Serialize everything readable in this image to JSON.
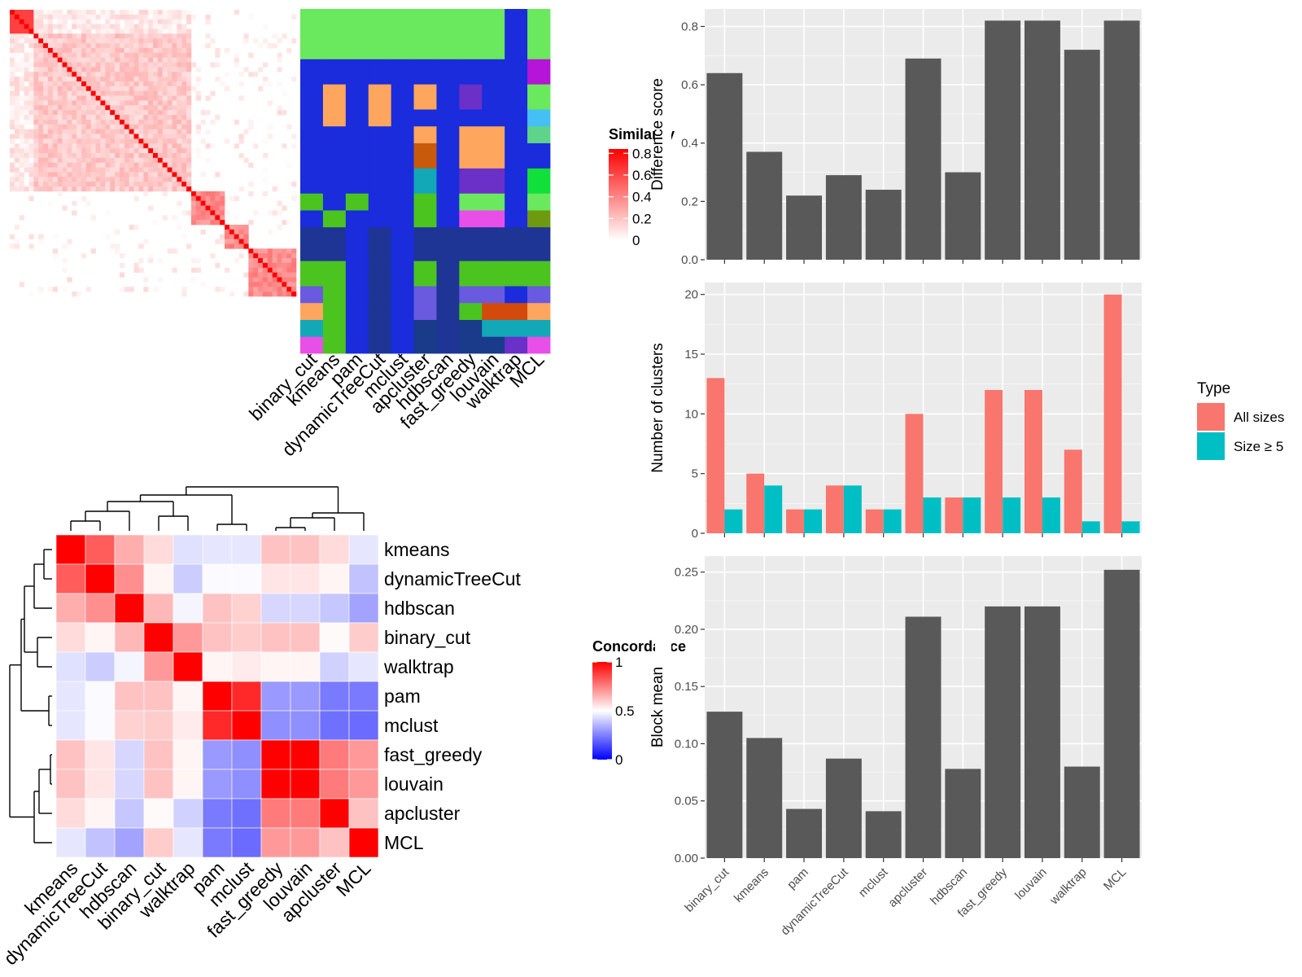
{
  "methods_axis": [
    "binary_cut",
    "kmeans",
    "pam",
    "dynamicTreeCut",
    "mclust",
    "apcluster",
    "hdbscan",
    "fast_greedy",
    "louvain",
    "walktrap",
    "MCL"
  ],
  "similarity_legend": {
    "title": "Similarity",
    "ticks": [
      "0.8",
      "0.6",
      "0.4",
      "0.2",
      "0"
    ],
    "tick_values": [
      0.8,
      0.6,
      0.4,
      0.2,
      0
    ]
  },
  "concordance_legend": {
    "title": "Concordance",
    "ticks": [
      "1",
      "0.5",
      "0"
    ],
    "tick_values": [
      1,
      0.5,
      0
    ]
  },
  "type_legend": {
    "title": "Type",
    "items": [
      {
        "label": "All sizes",
        "color": "#F8766D"
      },
      {
        "label": "Size ≥ 5",
        "color": "#00BFC4"
      }
    ]
  },
  "palette": {
    "bar": "#595959",
    "panel_bg": "#EBEBEB",
    "concordance_high": "#FF0000",
    "concordance_mid": "#FFFFFF",
    "concordance_low": "#0000FF",
    "similarity_high": "#FF0000"
  },
  "concordance_order": [
    "kmeans",
    "dynamicTreeCut",
    "hdbscan",
    "binary_cut",
    "walktrap",
    "pam",
    "mclust",
    "fast_greedy",
    "louvain",
    "apcluster",
    "MCL"
  ],
  "concordance_matrix": [
    [
      1.0,
      0.82,
      0.66,
      0.57,
      0.44,
      0.45,
      0.45,
      0.62,
      0.62,
      0.57,
      0.45
    ],
    [
      0.82,
      1.0,
      0.72,
      0.52,
      0.4,
      0.49,
      0.49,
      0.55,
      0.55,
      0.52,
      0.38
    ],
    [
      0.66,
      0.72,
      1.0,
      0.64,
      0.48,
      0.62,
      0.59,
      0.42,
      0.42,
      0.39,
      0.32
    ],
    [
      0.57,
      0.52,
      0.64,
      1.0,
      0.7,
      0.62,
      0.6,
      0.62,
      0.62,
      0.51,
      0.6
    ],
    [
      0.44,
      0.4,
      0.48,
      0.7,
      1.0,
      0.52,
      0.54,
      0.52,
      0.52,
      0.41,
      0.45
    ],
    [
      0.45,
      0.49,
      0.62,
      0.62,
      0.52,
      1.0,
      0.92,
      0.3,
      0.3,
      0.24,
      0.24
    ],
    [
      0.45,
      0.49,
      0.59,
      0.6,
      0.54,
      0.92,
      1.0,
      0.28,
      0.28,
      0.22,
      0.21
    ],
    [
      0.62,
      0.55,
      0.42,
      0.62,
      0.52,
      0.3,
      0.28,
      1.0,
      1.0,
      0.76,
      0.7
    ],
    [
      0.62,
      0.55,
      0.42,
      0.62,
      0.52,
      0.3,
      0.28,
      1.0,
      1.0,
      0.76,
      0.7
    ],
    [
      0.57,
      0.52,
      0.39,
      0.51,
      0.41,
      0.24,
      0.22,
      0.76,
      0.76,
      1.0,
      0.62
    ],
    [
      0.45,
      0.38,
      0.32,
      0.6,
      0.45,
      0.24,
      0.21,
      0.7,
      0.7,
      0.62,
      1.0
    ]
  ],
  "cluster_color_map": {
    "methods": [
      "binary_cut",
      "kmeans",
      "pam",
      "dynamicTreeCut",
      "mclust",
      "apcluster",
      "hdbscan",
      "fast_greedy",
      "louvain",
      "walktrap",
      "MCL"
    ],
    "rows": [
      {
        "fraction": 0.146,
        "colors": [
          "#6AE85E",
          "#6AE85E",
          "#6AE85E",
          "#6AE85E",
          "#6AE85E",
          "#6AE85E",
          "#6AE85E",
          "#6AE85E",
          "#6AE85E",
          "#1A2CDB",
          "#6AE85E"
        ]
      },
      {
        "fraction": 0.073,
        "colors": [
          "#1A2CDB",
          "#1A2CDB",
          "#1A2CDB",
          "#1A2CDB",
          "#1A2CDB",
          "#1A2CDB",
          "#1A2CDB",
          "#1A2CDB",
          "#1A2CDB",
          "#1A2CDB",
          "#B515D6"
        ]
      },
      {
        "fraction": 0.073,
        "colors": [
          "#1A2CDB",
          "#FFA65E",
          "#1A2CDB",
          "#FFA65E",
          "#1A2CDB",
          "#FFA65E",
          "#1A2CDB",
          "#6A30C8",
          "#1A2CDB",
          "#1A2CDB",
          "#6AE85E"
        ]
      },
      {
        "fraction": 0.049,
        "colors": [
          "#1A2CDB",
          "#FFA65E",
          "#1A2CDB",
          "#FFA65E",
          "#1A2CDB",
          "#1A2CDB",
          "#1A2CDB",
          "#1A2CDB",
          "#1A2CDB",
          "#1A2CDB",
          "#45C0F5"
        ]
      },
      {
        "fraction": 0.049,
        "colors": [
          "#1A2CDB",
          "#1A2CDB",
          "#1A2CDB",
          "#1A2CDB",
          "#1A2CDB",
          "#FFA65E",
          "#1A2CDB",
          "#FFA65E",
          "#FFA65E",
          "#1A2CDB",
          "#5ED48A"
        ]
      },
      {
        "fraction": 0.073,
        "colors": [
          "#1A2CDB",
          "#1A2CDB",
          "#1A2CDB",
          "#1A2CDB",
          "#1A2CDB",
          "#C85A0C",
          "#1A2CDB",
          "#FFA65E",
          "#FFA65E",
          "#1A2CDB",
          "#1A2CDB"
        ]
      },
      {
        "fraction": 0.073,
        "colors": [
          "#1A2CDB",
          "#1A2CDB",
          "#1A2CDB",
          "#1A2CDB",
          "#1A2CDB",
          "#12A8B8",
          "#1A2CDB",
          "#6A30C8",
          "#6A30C8",
          "#1A2CDB",
          "#12E03A"
        ]
      },
      {
        "fraction": 0.049,
        "colors": [
          "#4BC420",
          "#1A2CDB",
          "#4BC420",
          "#1A2CDB",
          "#1A2CDB",
          "#4BC420",
          "#1A2CDB",
          "#6AE85E",
          "#6AE85E",
          "#1A2CDB",
          "#6AE85E"
        ]
      },
      {
        "fraction": 0.049,
        "colors": [
          "#1A2CDB",
          "#4BC420",
          "#1A2CDB",
          "#1A2CDB",
          "#1A2CDB",
          "#4BC420",
          "#1A2CDB",
          "#E84FE8",
          "#E84FE8",
          "#1A2CDB",
          "#6E9A10"
        ]
      },
      {
        "fraction": 0.098,
        "colors": [
          "#1F3596",
          "#1F3596",
          "#1A2CDB",
          "#1F3596",
          "#1A2CDB",
          "#1F3596",
          "#1F3596",
          "#1F3596",
          "#1F3596",
          "#1F3596",
          "#1F3596"
        ]
      },
      {
        "fraction": 0.073,
        "colors": [
          "#4BC420",
          "#4BC420",
          "#1A2CDB",
          "#1F3596",
          "#1A2CDB",
          "#4BC420",
          "#1F3596",
          "#4BC420",
          "#4BC420",
          "#4BC420",
          "#4BC420"
        ]
      },
      {
        "fraction": 0.049,
        "colors": [
          "#6A5AE0",
          "#4BC420",
          "#1A2CDB",
          "#1F3596",
          "#1A2CDB",
          "#6A5AE0",
          "#1F3596",
          "#6A5AE0",
          "#6A5AE0",
          "#1A2CDB",
          "#6A5AE0"
        ]
      },
      {
        "fraction": 0.049,
        "colors": [
          "#FFA65E",
          "#4BC420",
          "#1A2CDB",
          "#1F3596",
          "#1A2CDB",
          "#6A5AE0",
          "#1F3596",
          "#4BC420",
          "#D44A0C",
          "#D44A0C",
          "#FFA65E"
        ]
      },
      {
        "fraction": 0.049,
        "colors": [
          "#12A8B8",
          "#4BC420",
          "#1A2CDB",
          "#1F3596",
          "#1A2CDB",
          "#1A3A8A",
          "#1F3596",
          "#1A3A8A",
          "#12A8B8",
          "#12A8B8",
          "#12A8B8"
        ]
      },
      {
        "fraction": 0.048,
        "colors": [
          "#E84FE8",
          "#4BC420",
          "#1A2CDB",
          "#1F3596",
          "#1A2CDB",
          "#1A3A8A",
          "#1F3596",
          "#1A3A8A",
          "#1A3A8A",
          "#6A30C8",
          "#E84FE8"
        ]
      }
    ]
  },
  "chart_data": [
    {
      "type": "bar",
      "categories": [
        "binary_cut",
        "kmeans",
        "pam",
        "dynamicTreeCut",
        "mclust",
        "apcluster",
        "hdbscan",
        "fast_greedy",
        "louvain",
        "walktrap",
        "MCL"
      ],
      "values": [
        0.64,
        0.37,
        0.22,
        0.29,
        0.24,
        0.69,
        0.3,
        0.82,
        0.82,
        0.72,
        0.82
      ],
      "title": "",
      "xlabel": "",
      "ylabel": "Difference score",
      "ylim": [
        0,
        0.86
      ],
      "yticks": [
        "0.0",
        "0.2",
        "0.4",
        "0.6",
        "0.8"
      ],
      "ytick_values": [
        0,
        0.2,
        0.4,
        0.6,
        0.8
      ],
      "grid": true
    },
    {
      "type": "bar",
      "categories": [
        "binary_cut",
        "kmeans",
        "pam",
        "dynamicTreeCut",
        "mclust",
        "apcluster",
        "hdbscan",
        "fast_greedy",
        "louvain",
        "walktrap",
        "MCL"
      ],
      "series": [
        {
          "name": "All sizes",
          "values": [
            13,
            5,
            2,
            4,
            2,
            10,
            3,
            12,
            12,
            7,
            20
          ]
        },
        {
          "name": "Size ≥ 5",
          "values": [
            2,
            4,
            2,
            4,
            2,
            3,
            3,
            3,
            3,
            1,
            1
          ]
        }
      ],
      "title": "",
      "xlabel": "",
      "ylabel": "Number of clusters",
      "ylim": [
        0,
        21
      ],
      "yticks": [
        "0",
        "5",
        "10",
        "15",
        "20"
      ],
      "ytick_values": [
        0,
        5,
        10,
        15,
        20
      ],
      "legend": "right",
      "grid": true
    },
    {
      "type": "bar",
      "categories": [
        "binary_cut",
        "kmeans",
        "pam",
        "dynamicTreeCut",
        "mclust",
        "apcluster",
        "hdbscan",
        "fast_greedy",
        "louvain",
        "walktrap",
        "MCL"
      ],
      "values": [
        0.128,
        0.105,
        0.043,
        0.087,
        0.041,
        0.211,
        0.078,
        0.22,
        0.22,
        0.08,
        0.252
      ],
      "title": "",
      "xlabel": "",
      "ylabel": "Block mean",
      "ylim": [
        0,
        0.264
      ],
      "yticks": [
        "0.00",
        "0.05",
        "0.10",
        "0.15",
        "0.20",
        "0.25"
      ],
      "ytick_values": [
        0,
        0.05,
        0.1,
        0.15,
        0.2,
        0.25
      ],
      "grid": true
    }
  ]
}
